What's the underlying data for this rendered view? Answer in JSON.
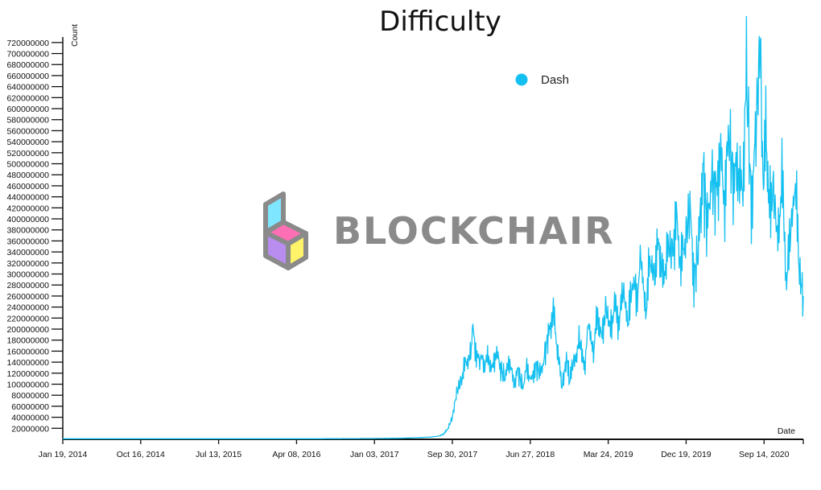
{
  "chart_data": {
    "type": "line",
    "title": "Difficulty",
    "xlabel": "Date",
    "ylabel": "Count",
    "ylim": [
      0,
      730000000
    ],
    "xlim": [
      "2014-01-19",
      "2021-01-28"
    ],
    "x_ticks": [
      "Jan 19, 2014",
      "Oct 16, 2014",
      "Jul 13, 2015",
      "Apr 08, 2016",
      "Jan 03, 2017",
      "Sep 30, 2017",
      "Jun 27, 2018",
      "Mar 24, 2019",
      "Dec 19, 2019",
      "Sep 14, 2020"
    ],
    "y_ticks": [
      20000000,
      40000000,
      60000000,
      80000000,
      100000000,
      120000000,
      140000000,
      160000000,
      180000000,
      200000000,
      220000000,
      240000000,
      260000000,
      280000000,
      300000000,
      320000000,
      340000000,
      360000000,
      380000000,
      400000000,
      420000000,
      440000000,
      460000000,
      480000000,
      500000000,
      520000000,
      540000000,
      560000000,
      580000000,
      600000000,
      620000000,
      640000000,
      660000000,
      680000000,
      700000000,
      720000000
    ],
    "legend": {
      "position": "top-right",
      "entries": [
        "Dash"
      ]
    },
    "grid": false,
    "series": [
      {
        "name": "Dash",
        "color": "#14c0f0",
        "x": [
          "2014-01-19",
          "2014-06-01",
          "2015-01-01",
          "2015-06-01",
          "2016-01-01",
          "2016-06-01",
          "2017-01-01",
          "2017-04-01",
          "2017-06-01",
          "2017-07-15",
          "2017-08-15",
          "2017-09-01",
          "2017-09-15",
          "2017-09-30",
          "2017-10-15",
          "2017-11-01",
          "2017-11-15",
          "2017-12-01",
          "2017-12-10",
          "2017-12-20",
          "2018-01-01",
          "2018-01-10",
          "2018-01-20",
          "2018-02-01",
          "2018-02-15",
          "2018-03-01",
          "2018-03-15",
          "2018-04-01",
          "2018-04-15",
          "2018-05-01",
          "2018-05-15",
          "2018-06-01",
          "2018-06-15",
          "2018-07-01",
          "2018-07-15",
          "2018-08-01",
          "2018-08-15",
          "2018-09-01",
          "2018-09-15",
          "2018-10-01",
          "2018-10-15",
          "2018-11-01",
          "2018-11-10",
          "2018-11-20",
          "2018-12-01",
          "2018-12-15",
          "2019-01-01",
          "2019-01-15",
          "2019-02-01",
          "2019-02-15",
          "2019-03-01",
          "2019-03-15",
          "2019-04-01",
          "2019-04-15",
          "2019-05-01",
          "2019-05-15",
          "2019-06-01",
          "2019-06-15",
          "2019-07-01",
          "2019-07-15",
          "2019-08-01",
          "2019-08-15",
          "2019-09-01",
          "2019-09-15",
          "2019-10-01",
          "2019-10-15",
          "2019-11-01",
          "2019-11-15",
          "2019-12-01",
          "2019-12-15",
          "2020-01-01",
          "2020-01-15",
          "2020-02-01",
          "2020-02-15",
          "2020-03-01",
          "2020-03-15",
          "2020-04-01",
          "2020-04-15",
          "2020-05-01",
          "2020-05-15",
          "2020-06-01",
          "2020-06-15",
          "2020-07-01",
          "2020-07-15",
          "2020-08-01",
          "2020-08-15",
          "2020-09-01",
          "2020-09-10",
          "2020-09-20",
          "2020-10-01",
          "2020-10-15",
          "2020-11-01",
          "2020-11-15",
          "2020-12-01",
          "2020-12-15",
          "2021-01-01",
          "2021-01-15",
          "2021-01-28"
        ],
        "values": [
          1000000,
          1000000,
          1000000,
          1000000,
          1000000,
          1000000,
          1500000,
          2000000,
          3000000,
          4000000,
          6000000,
          10000000,
          20000000,
          40000000,
          85000000,
          110000000,
          140000000,
          150000000,
          200000000,
          160000000,
          140000000,
          150000000,
          135000000,
          150000000,
          125000000,
          160000000,
          130000000,
          110000000,
          145000000,
          100000000,
          125000000,
          95000000,
          130000000,
          105000000,
          135000000,
          120000000,
          150000000,
          200000000,
          230000000,
          155000000,
          95000000,
          150000000,
          100000000,
          135000000,
          150000000,
          180000000,
          130000000,
          210000000,
          155000000,
          230000000,
          180000000,
          240000000,
          200000000,
          245000000,
          210000000,
          275000000,
          205000000,
          290000000,
          255000000,
          330000000,
          230000000,
          320000000,
          300000000,
          360000000,
          285000000,
          350000000,
          340000000,
          400000000,
          315000000,
          360000000,
          420000000,
          290000000,
          350000000,
          500000000,
          380000000,
          480000000,
          440000000,
          520000000,
          430000000,
          560000000,
          460000000,
          500000000,
          440000000,
          670000000,
          420000000,
          540000000,
          725000000,
          470000000,
          560000000,
          420000000,
          460000000,
          360000000,
          480000000,
          280000000,
          380000000,
          460000000,
          300000000,
          260000000
        ]
      }
    ]
  },
  "watermark": {
    "text": "BLOCKCHAIR"
  }
}
